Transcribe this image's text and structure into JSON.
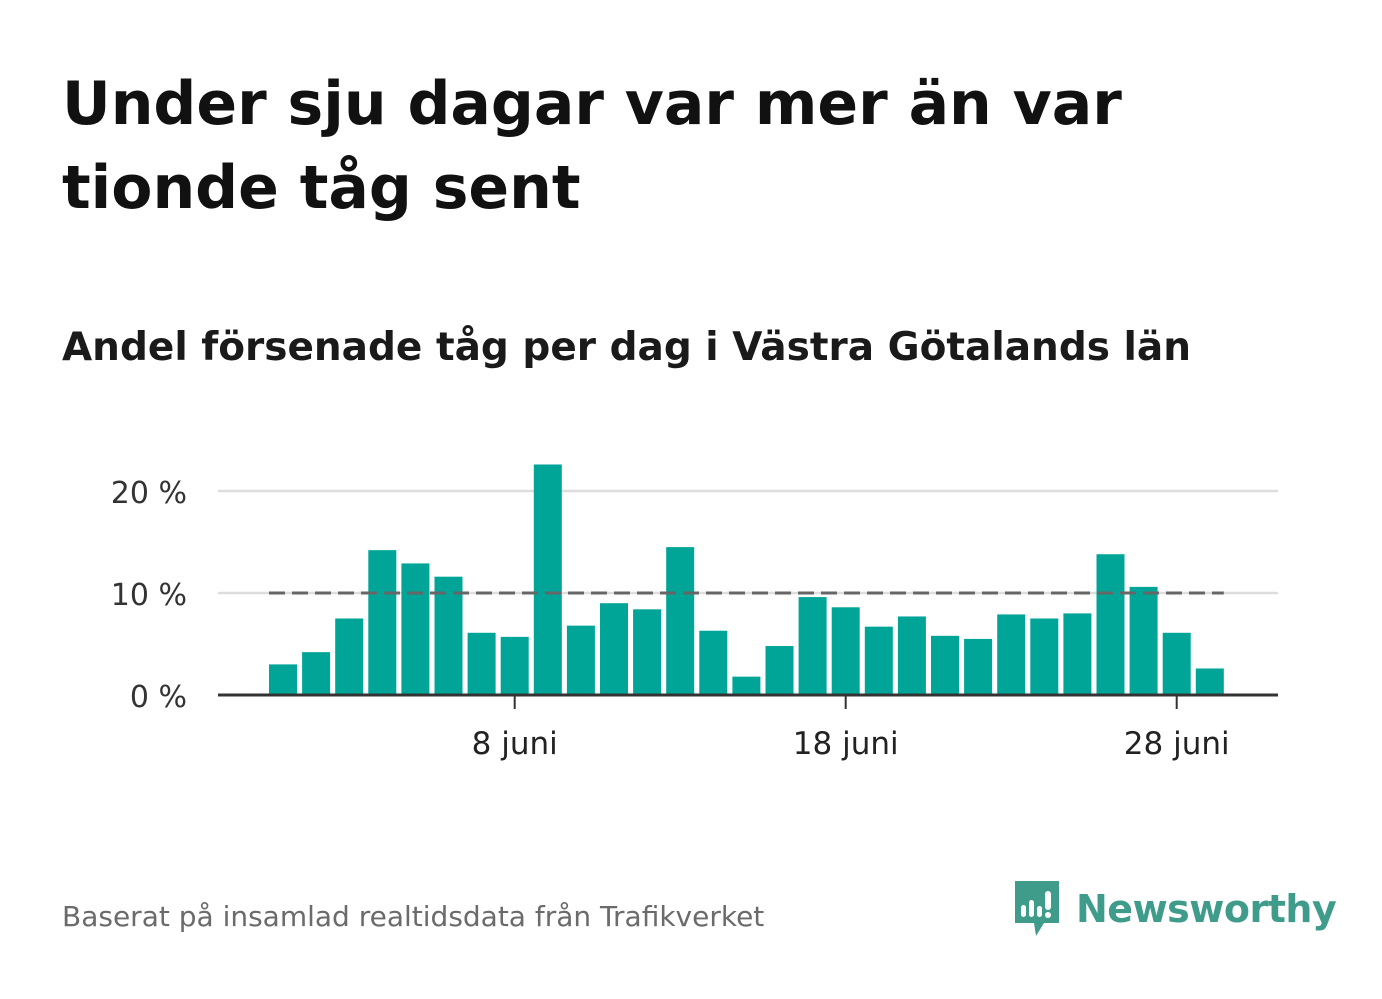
{
  "title": "Under sju dagar var mer än var tionde tåg sent",
  "subtitle": "Andel försenade tåg per dag i Västra Götalands län",
  "source": "Baserat på insamlad realtidsdata från Trafikverket",
  "brand": {
    "name": "Newsworthy",
    "icon": "newsworthy-logo-icon",
    "color": "#3f9c8b"
  },
  "colors": {
    "bar": "#00a598",
    "reference_line": "#666666",
    "grid": "#dddddd",
    "axis": "#333333"
  },
  "chart_data": {
    "type": "bar",
    "title": "Andel försenade tåg per dag i Västra Götalands län",
    "x_unit": "day of June",
    "x": [
      1,
      2,
      3,
      4,
      5,
      6,
      7,
      8,
      9,
      10,
      11,
      12,
      13,
      14,
      15,
      16,
      17,
      18,
      19,
      20,
      21,
      22,
      23,
      24,
      25,
      26,
      27,
      28,
      29
    ],
    "series": [
      {
        "values": [
          3.0,
          4.2,
          7.5,
          14.2,
          12.9,
          11.6,
          6.1,
          5.7,
          22.6,
          6.8,
          9.0,
          8.4,
          14.5,
          6.3,
          1.8,
          4.8,
          9.6,
          8.6,
          6.7,
          7.7,
          5.8,
          5.5,
          7.9,
          7.5,
          8.0,
          13.8,
          10.6,
          6.1,
          2.6
        ]
      }
    ],
    "reference_line": 10,
    "ylim": [
      0,
      23
    ],
    "yticks": [
      0,
      10,
      20
    ],
    "ytick_labels": [
      "0 %",
      "10 %",
      "20 %"
    ],
    "xticks": [
      8,
      18,
      28
    ],
    "xtick_labels": [
      "8 juni",
      "18 juni",
      "28 juni"
    ],
    "xlabel": "",
    "ylabel": "",
    "grid": true,
    "legend": "none"
  }
}
